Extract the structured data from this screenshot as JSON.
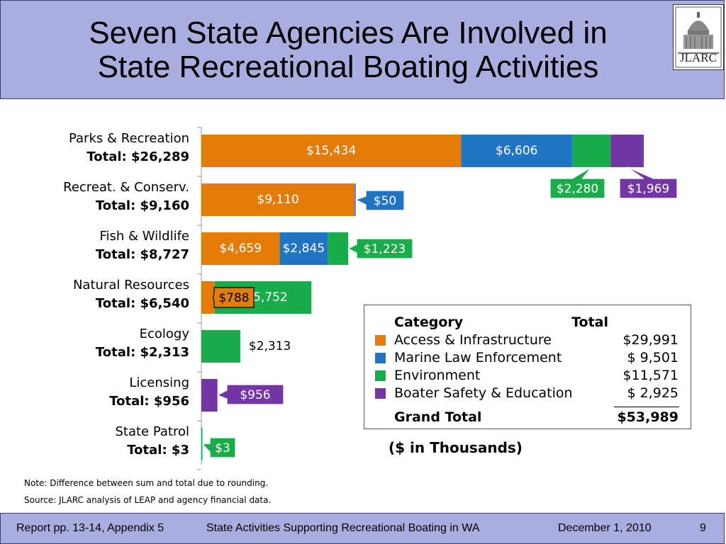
{
  "slide": {
    "title_line1": "Seven State Agencies Are Involved in",
    "title_line2": "State Recreational Boating Activities",
    "logo_text": "JLARC",
    "units": "($ in Thousands)",
    "note": "Note:  Difference between sum and total due to rounding.",
    "source": "Source:  JLARC analysis of LEAP and agency financial data.",
    "footer_left": "Report pp. 13-14, Appendix 5",
    "footer_center": "State Activities Supporting Recreational Boating in WA",
    "footer_date": "December 1, 2010",
    "footer_page": "9"
  },
  "colors": {
    "access": "#e37b07",
    "marine": "#1f74c4",
    "environment": "#1aab4b",
    "safety": "#7436a3",
    "title_band": "#a9addf"
  },
  "chart_data": {
    "type": "bar",
    "orientation": "horizontal",
    "stacked": true,
    "units": "($ in Thousands)",
    "categories": [
      "Parks & Recreation",
      "Recreat. & Conserv.",
      "Fish & Wildlife",
      "Natural Resources",
      "Ecology",
      "Licensing",
      "State Patrol"
    ],
    "totals": [
      "Total: $26,289",
      "Total: $9,160",
      "Total: $8,727",
      "Total: $6,540",
      "Total: $2,313",
      "Total: $956",
      "Total: $3"
    ],
    "series": [
      {
        "name": "Access & Infrastructure",
        "values": [
          15434,
          9110,
          4659,
          788,
          0,
          0,
          0
        ],
        "labels": [
          "$15,434",
          "$9,110",
          "$4,659",
          "$788",
          "",
          "",
          ""
        ]
      },
      {
        "name": "Marine Law Enforcement",
        "values": [
          6606,
          50,
          2845,
          0,
          0,
          0,
          0
        ],
        "labels": [
          "$6,606",
          "$50",
          "$2,845",
          "",
          "",
          "",
          ""
        ]
      },
      {
        "name": "Environment",
        "values": [
          2280,
          0,
          1223,
          5752,
          2313,
          0,
          3
        ],
        "labels": [
          "$2,280",
          "",
          "$1,223",
          "$5,752",
          "$2,313",
          "",
          "$3"
        ]
      },
      {
        "name": "Boater Safety & Education",
        "values": [
          1969,
          0,
          0,
          0,
          0,
          956,
          0
        ],
        "labels": [
          "$1,969",
          "",
          "",
          "",
          "",
          "$956",
          ""
        ]
      }
    ],
    "legend": {
      "header_category": "Category",
      "header_total": "Total",
      "rows": [
        {
          "category": "Access & Infrastructure",
          "total": "$29,991"
        },
        {
          "category": "Marine Law Enforcement",
          "total": "$ 9,501"
        },
        {
          "category": "Environment",
          "total": "$11,571"
        },
        {
          "category": "Boater Safety & Education",
          "total": "$ 2,925"
        }
      ],
      "grand_total_label": "Grand Total",
      "grand_total": "$53,989",
      "placement": "bottom-right"
    },
    "xlim": [
      0,
      27000
    ]
  }
}
